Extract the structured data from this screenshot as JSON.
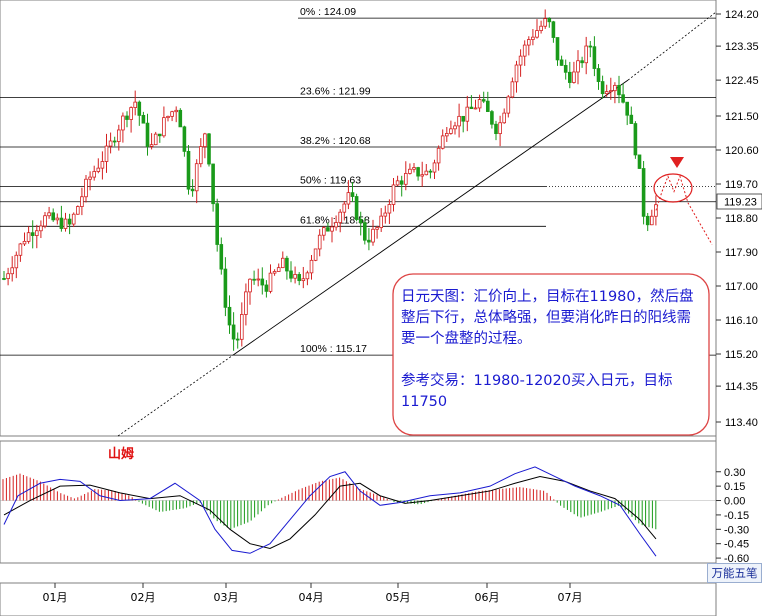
{
  "chart_data": [
    {
      "type": "candlestick",
      "title": "",
      "x_ticks": [
        "01月",
        "02月",
        "03月",
        "04月",
        "05月",
        "06月",
        "07月"
      ],
      "y_ticks": [
        "124.20",
        "123.35",
        "122.45",
        "121.50",
        "120.60",
        "119.70",
        "118.80",
        "117.90",
        "117.00",
        "116.10",
        "115.20",
        "114.35",
        "113.40"
      ],
      "ylim": [
        113.4,
        124.2
      ],
      "last_price": "119.23",
      "fib_levels": [
        {
          "label": "0%    : 124.09",
          "value": 124.09
        },
        {
          "label": "23.6% : 121.99",
          "value": 121.99
        },
        {
          "label": "38.2% : 120.68",
          "value": 120.68
        },
        {
          "label": "50%   : 119.63",
          "value": 119.63
        },
        {
          "label": "61.8% : 118.58",
          "value": 118.58
        },
        {
          "label": "100%  : 115.17",
          "value": 115.17
        }
      ],
      "extra_level": 119.23,
      "trendline": [
        [
          0.148,
          113.4
        ],
        [
          1.0,
          124.2
        ]
      ],
      "projection": [
        119.0,
        119.5,
        119.9,
        119.5,
        119.9,
        119.2,
        118.1
      ],
      "up_color": "#d42020",
      "down_color": "#1a9a1a"
    },
    {
      "type": "macd",
      "title": "山姆",
      "y_ticks": [
        "0.30",
        "0.15",
        "0.00",
        "-0.15",
        "-0.30",
        "-0.45",
        "-0.60"
      ],
      "ylim": [
        -0.62,
        0.36
      ],
      "pos_color": "#d42020",
      "neg_color": "#1a9a1a",
      "dif_color": "#1a1ad0",
      "dea_color": "#000000"
    }
  ],
  "annotation": {
    "line1": "日元天图：汇价向上，目标在11980，然后盘整后下行，总体略强，但要消化昨日的阳线需要一个盘整的过程。",
    "line2": "参考交易：11980-12020买入日元，目标11750"
  },
  "brand": "万能五笔"
}
